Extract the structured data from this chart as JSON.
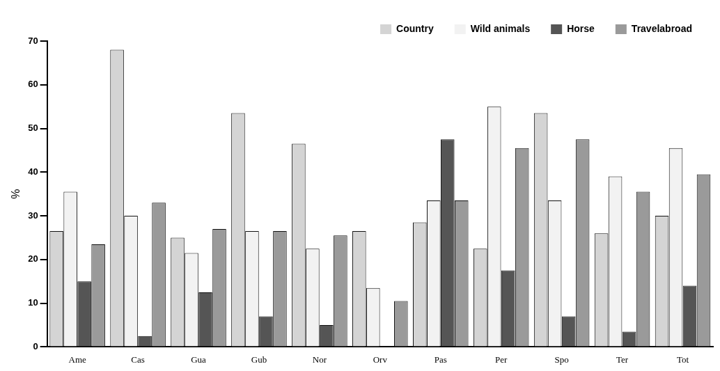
{
  "chart_data": {
    "type": "bar",
    "ylabel": "%",
    "categories": [
      "Ame",
      "Cas",
      "Gua",
      "Gub",
      "Nor",
      "Orv",
      "Pas",
      "Per",
      "Spo",
      "Ter",
      "Tot"
    ],
    "series": [
      {
        "name": "Country",
        "color": "#d4d4d4",
        "values": [
          26.5,
          68,
          25,
          53.5,
          46.5,
          26.5,
          28.5,
          22.5,
          53.5,
          26,
          30
        ]
      },
      {
        "name": "Wild animals",
        "color": "#f2f2f2",
        "values": [
          35.5,
          30,
          21.5,
          26.5,
          22.5,
          13.5,
          33.5,
          55,
          33.5,
          39,
          45.5
        ]
      },
      {
        "name": "Horse",
        "color": "#555555",
        "values": [
          15,
          2.5,
          12.5,
          7,
          5,
          0,
          47.5,
          17.5,
          7,
          3.5,
          14
        ]
      },
      {
        "name": "Travelabroad",
        "color": "#9a9a9a",
        "values": [
          23.5,
          33,
          27,
          26.5,
          25.5,
          10.5,
          33.5,
          45.5,
          47.5,
          35.5,
          39.5
        ]
      }
    ],
    "ylim": [
      0,
      70
    ],
    "yticks": [
      0,
      10,
      20,
      30,
      40,
      50,
      60,
      70
    ],
    "grid": false,
    "legend": "top right"
  }
}
